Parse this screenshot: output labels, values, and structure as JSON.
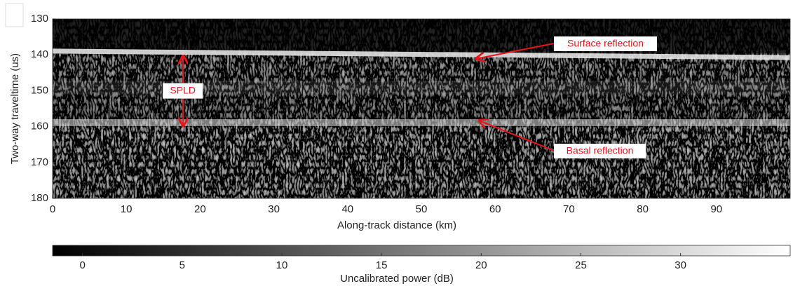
{
  "chart_data": {
    "type": "radargram",
    "x_label": "Along-track distance (km)",
    "y_label": "Two-way traveltime (us)",
    "xlim": [
      0,
      100
    ],
    "ylim": [
      180,
      130
    ],
    "xticks": [
      0,
      10,
      20,
      30,
      40,
      50,
      60,
      70,
      80,
      90
    ],
    "yticks": [
      130,
      140,
      150,
      160,
      170,
      180
    ],
    "colormap": "gray",
    "colorbar": {
      "label": "Uncalibrated power (dB)",
      "clim": [
        -1.5,
        35.5
      ],
      "ticks": [
        0,
        5,
        10,
        15,
        20,
        25,
        30
      ]
    },
    "annotations": [
      {
        "text": "Surface reflection",
        "xy": [
          57.4,
          141.1
        ],
        "color": "#e8141c"
      },
      {
        "text": "Basal reflection",
        "xy": [
          57.8,
          158.3
        ],
        "color": "#e8141c"
      }
    ],
    "span_annotation": {
      "text": "SPLD",
      "x": 17.7,
      "y": [
        140.2,
        159.9
      ],
      "color": "#e8141c"
    }
  }
}
